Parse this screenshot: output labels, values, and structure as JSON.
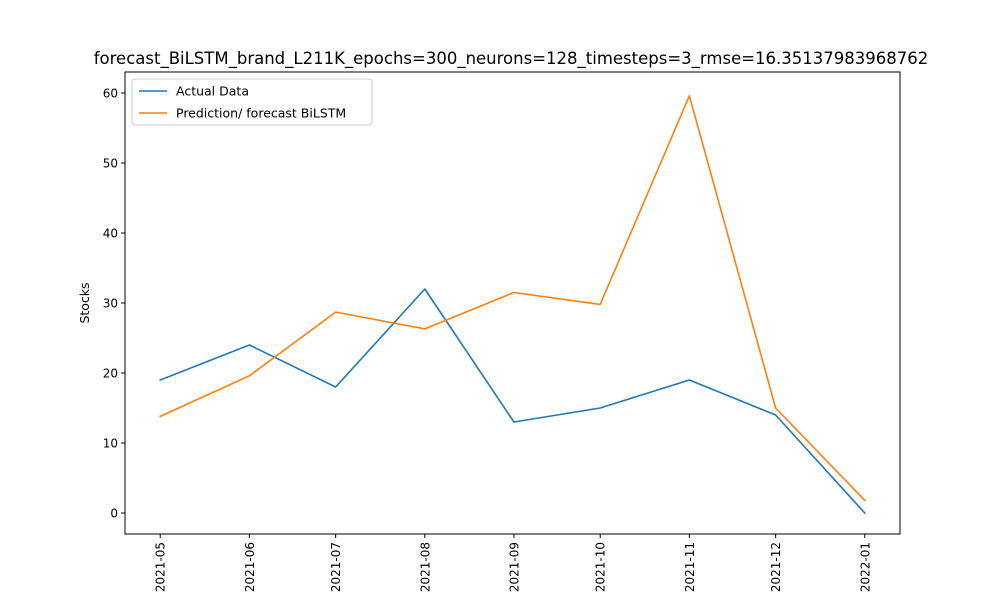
{
  "chart_data": {
    "type": "line",
    "title": "forecast_BiLSTM_brand_L211K_epochs=300_neurons=128_timesteps=3_rmse=16.35137983968762",
    "xlabel": "",
    "ylabel": "Stocks",
    "categories": [
      "2021-05",
      "2021-06",
      "2021-07",
      "2021-08",
      "2021-09",
      "2021-10",
      "2021-11",
      "2021-12",
      "2022-01"
    ],
    "x_dates": [
      "2021-05-01",
      "2021-06-01",
      "2021-07-01",
      "2021-08-01",
      "2021-09-01",
      "2021-10-01",
      "2021-11-01",
      "2021-12-01",
      "2022-01-01"
    ],
    "ylim": [
      -3,
      63
    ],
    "y_ticks": [
      0,
      10,
      20,
      30,
      40,
      50,
      60
    ],
    "grid": false,
    "legend_position": "top-left",
    "series": [
      {
        "name": "Actual Data",
        "color": "#1f77b4",
        "values": [
          19,
          24,
          18,
          32,
          13,
          15,
          19,
          14,
          0
        ]
      },
      {
        "name": "Prediction/ forecast BiLSTM",
        "color": "#ff7f0e",
        "values": [
          13.8,
          19.6,
          28.7,
          26.3,
          31.5,
          29.8,
          59.6,
          15,
          1.8
        ]
      }
    ]
  }
}
